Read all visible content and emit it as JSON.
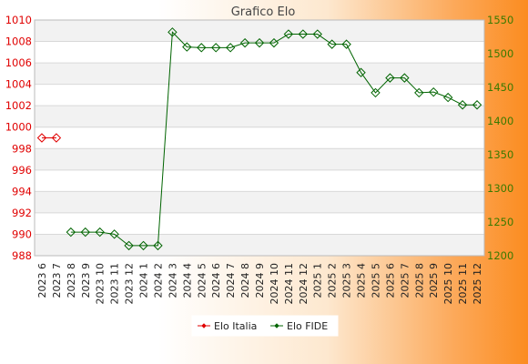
{
  "chart_data": {
    "type": "line",
    "title": "Grafico Elo",
    "categories": [
      "2023 6",
      "2023 7",
      "2023 8",
      "2023 9",
      "2023 10",
      "2023 11",
      "2023 12",
      "2024 1",
      "2024 2",
      "2024 3",
      "2024 4",
      "2024 5",
      "2024 6",
      "2024 7",
      "2024 8",
      "2024 9",
      "2024 10",
      "2024 11",
      "2024 12",
      "2025 1",
      "2025 2",
      "2025 3",
      "2025 4",
      "2025 5",
      "2025 6",
      "2025 7",
      "2025 8",
      "2025 9",
      "2025 10",
      "2025 11",
      "2025 12"
    ],
    "left_axis": {
      "range": [
        988,
        1010
      ],
      "ticks": [
        "988",
        "990",
        "992",
        "994",
        "996",
        "998",
        "1000",
        "1002",
        "1004",
        "1006",
        "1008",
        "1010"
      ],
      "color": "#e00000"
    },
    "right_axis": {
      "range": [
        1200,
        1550
      ],
      "ticks": [
        "1200",
        "1250",
        "1300",
        "1350",
        "1400",
        "1450",
        "1500",
        "1550"
      ],
      "color": "#3a7a00"
    },
    "series": [
      {
        "name": "Elo Italia",
        "axis": "left",
        "color": "#e00000",
        "values": [
          999,
          999,
          null,
          null,
          null,
          null,
          null,
          null,
          null,
          null,
          null,
          null,
          null,
          null,
          null,
          null,
          null,
          null,
          null,
          null,
          null,
          null,
          null,
          null,
          null,
          null,
          null,
          null,
          null,
          null,
          null
        ]
      },
      {
        "name": "Elo FIDE",
        "axis": "right",
        "color": "#006400",
        "values": [
          null,
          null,
          1235,
          1235,
          1235,
          1232,
          1215,
          1215,
          1215,
          1532,
          1510,
          1509,
          1509,
          1509,
          1516,
          1516,
          1516,
          1529,
          1529,
          1529,
          1514,
          1514,
          1472,
          1442,
          1464,
          1464,
          1442,
          1443,
          1435,
          1424,
          1424
        ]
      }
    ],
    "grid": true,
    "legend": "bottom-center"
  }
}
